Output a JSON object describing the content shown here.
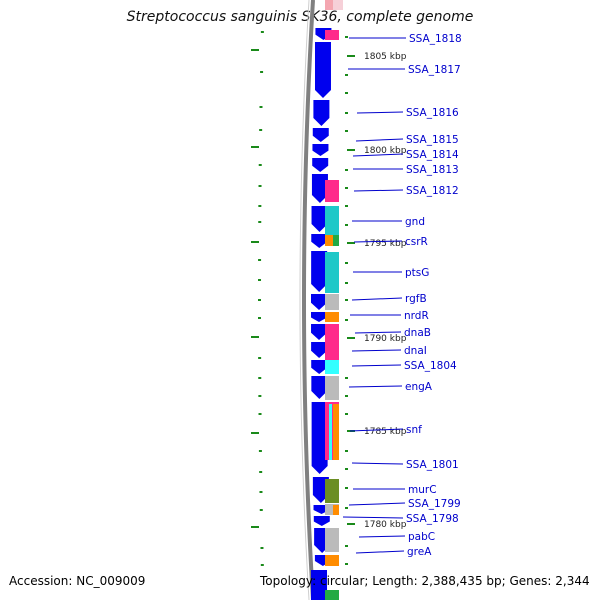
{
  "title": "Streptococcus sanguinis SK36, complete genome",
  "accession": "Accession: NC_009009",
  "topology": "Topology: circular; Length: 2,388,435 bp; Genes: 2,344",
  "colors": {
    "cds_strand": "#0000ee",
    "backbone": "#808080",
    "ticks": "#1a8a1a",
    "label_line": "#0000cc",
    "cog": {
      "pink": "#ff2a8a",
      "cyan": "#1ec8c8",
      "orange": "#ff8c00",
      "green": "#22aa44",
      "gray": "#bbbbbb",
      "light_cyan": "#33ffff",
      "olive": "#6b8e23",
      "light_pink": "#f4a6b0"
    }
  },
  "ruler": [
    {
      "label": "1805 kbp"
    },
    {
      "label": "1800 kbp"
    },
    {
      "label": "1795 kbp"
    },
    {
      "label": "1790 kbp"
    },
    {
      "label": "1785 kbp"
    },
    {
      "label": "1780 kbp"
    }
  ],
  "genes": [
    {
      "label": "SSA_1818"
    },
    {
      "label": "SSA_1817"
    },
    {
      "label": "SSA_1816"
    },
    {
      "label": "SSA_1815"
    },
    {
      "label": "SSA_1814"
    },
    {
      "label": "SSA_1813"
    },
    {
      "label": "SSA_1812"
    },
    {
      "label": "gnd"
    },
    {
      "label": "csrR"
    },
    {
      "label": "ptsG"
    },
    {
      "label": "rgfB"
    },
    {
      "label": "nrdR"
    },
    {
      "label": "dnaB"
    },
    {
      "label": "dnaI"
    },
    {
      "label": "SSA_1804"
    },
    {
      "label": "engA"
    },
    {
      "label": "snf"
    },
    {
      "label": "SSA_1801"
    },
    {
      "label": "murC"
    },
    {
      "label": "SSA_1799"
    },
    {
      "label": "SSA_1798"
    },
    {
      "label": "pabC"
    },
    {
      "label": "greA"
    }
  ]
}
